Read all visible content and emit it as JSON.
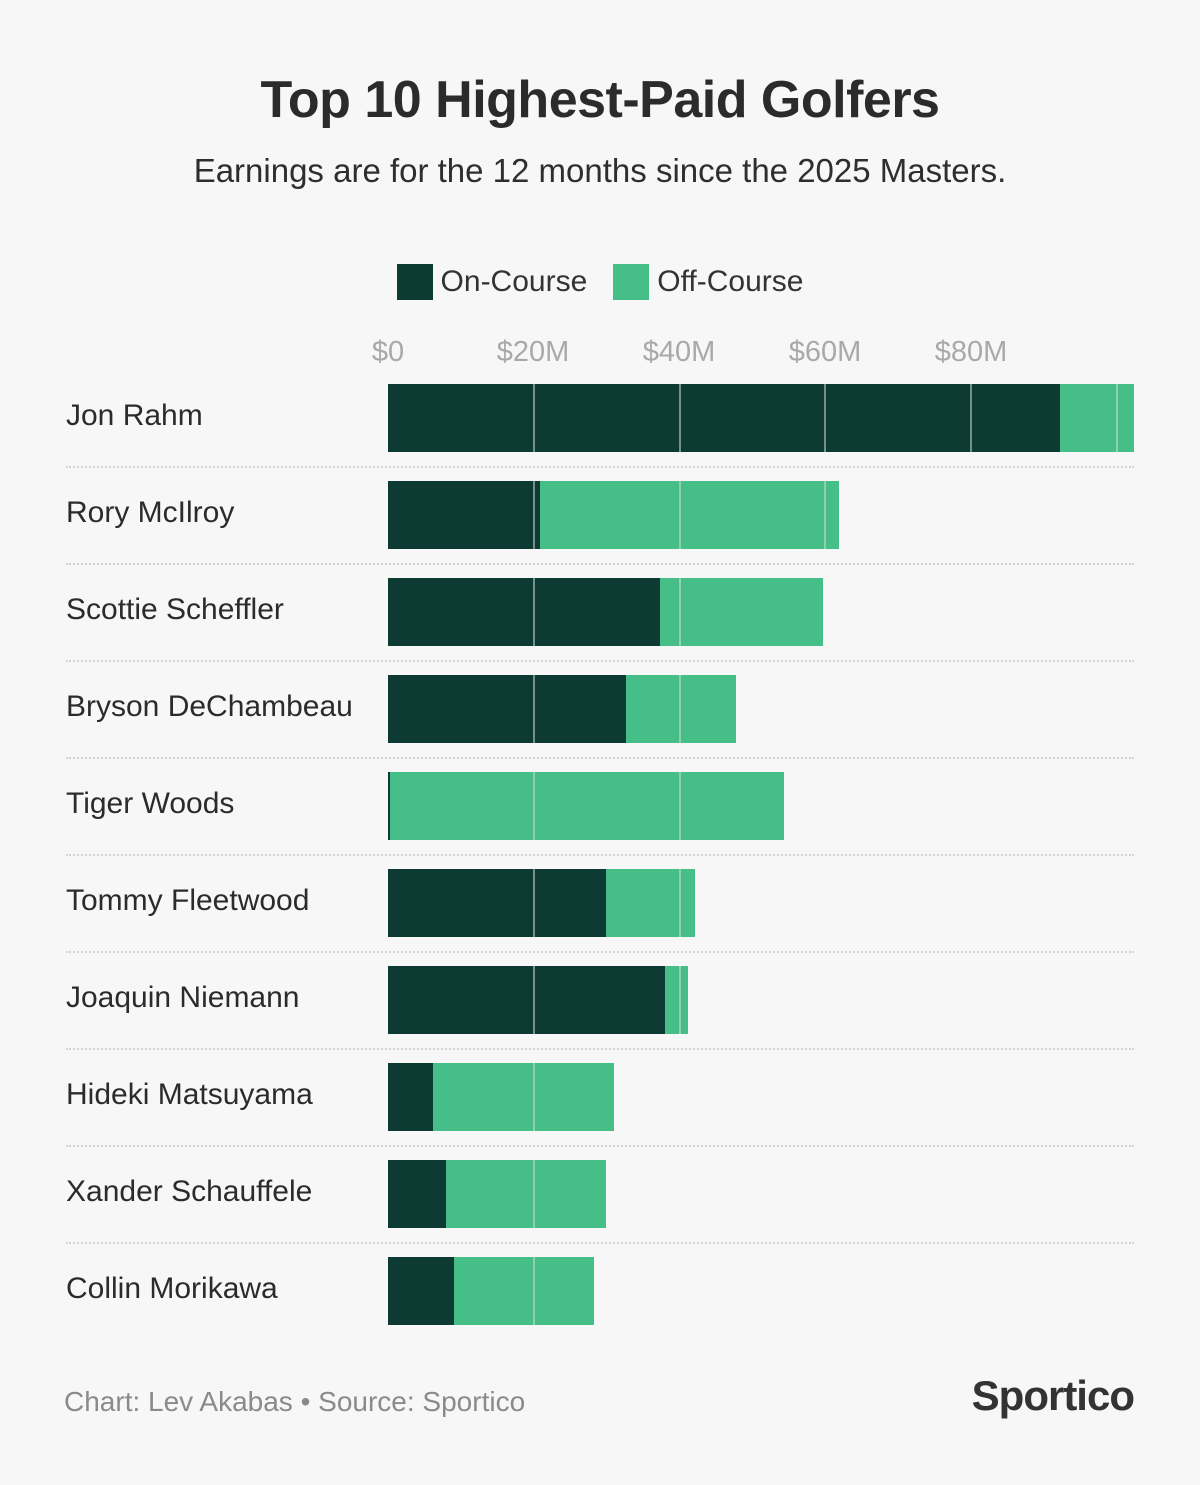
{
  "header": {
    "title": "Top 10 Highest-Paid Golfers",
    "subtitle": "Earnings are for the 12 months since the 2025 Masters."
  },
  "legend": [
    {
      "label": "On-Course",
      "color": "#0d3a33"
    },
    {
      "label": "Off-Course",
      "color": "#45bf87"
    }
  ],
  "axis": {
    "ticks": [
      "$0",
      "$20M",
      "$40M",
      "$60M",
      "$80M"
    ]
  },
  "footer": {
    "credit": "Chart: Lev Akabas • Source: Sportico",
    "brand": "Sportico"
  },
  "colors": {
    "on_course": "#0d3a33",
    "off_course": "#45bf87",
    "background": "#f7f7f7"
  },
  "chart_data": {
    "type": "bar",
    "orientation": "horizontal",
    "stacked": true,
    "title": "Top 10 Highest-Paid Golfers",
    "subtitle": "Earnings are for the 12 months since the 2025 Masters.",
    "xlabel": "",
    "ylabel": "",
    "xlim": [
      0,
      102
    ],
    "x_ticks": [
      "$0",
      "$20M",
      "$40M",
      "$60M",
      "$80M"
    ],
    "grid": true,
    "legend_position": "top",
    "unit": "USD millions",
    "categories": [
      "Jon Rahm",
      "Rory McIlroy",
      "Scottie Scheffler",
      "Bryson DeChambeau",
      "Tiger Woods",
      "Tommy Fleetwood",
      "Joaquin Niemann",
      "Hideki Matsuyama",
      "Xander Schauffele",
      "Collin Morikawa"
    ],
    "series": [
      {
        "name": "On-Course",
        "color": "#0d3a33",
        "values": [
          92.2,
          20.9,
          37.3,
          32.6,
          0.3,
          29.9,
          38.0,
          6.2,
          8.0,
          9.1
        ]
      },
      {
        "name": "Off-Course",
        "color": "#45bf87",
        "values": [
          10.1,
          41.0,
          22.4,
          15.1,
          54.0,
          12.2,
          3.1,
          24.8,
          21.9,
          19.2
        ]
      }
    ],
    "annotations": [
      "Chart: Lev Akabas • Source: Sportico"
    ]
  }
}
